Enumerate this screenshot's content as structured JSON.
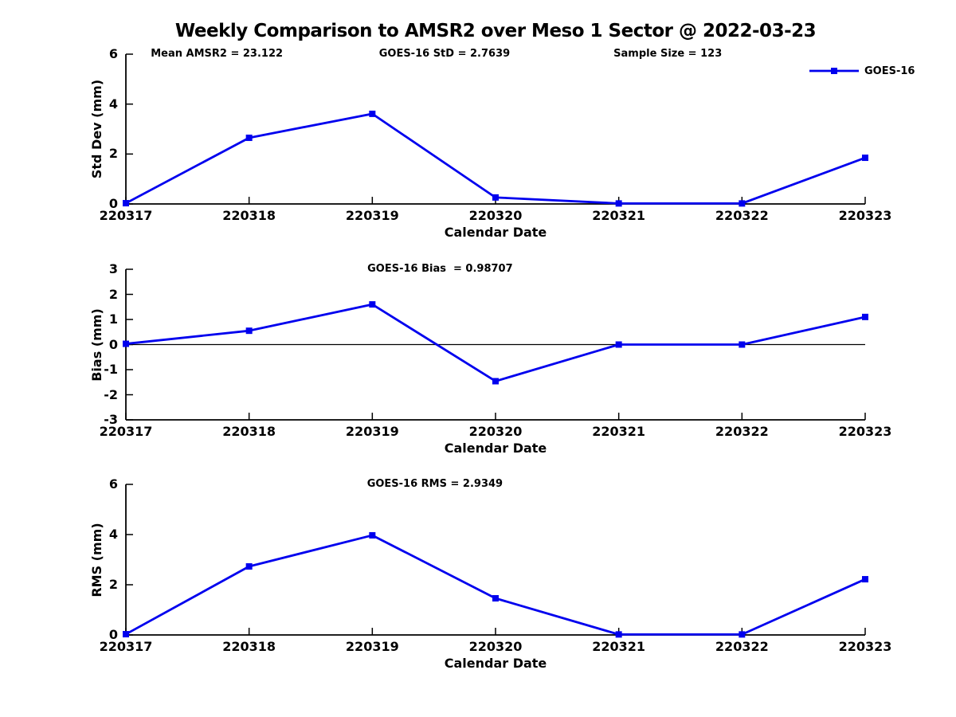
{
  "page": {
    "title": "Weekly Comparison to AMSR2 over Meso 1 Sector @ 2022-03-23"
  },
  "colors": {
    "series": "#0000EE",
    "axis": "#000000",
    "zero_line": "#000000"
  },
  "legend": {
    "label": "GOES-16"
  },
  "chart_data": [
    {
      "type": "line",
      "panel": "std-dev",
      "annotations": [
        "Mean AMSR2 = 23.122",
        "GOES-16 StD = 2.7639",
        "Sample Size = 123"
      ],
      "categories": [
        "220317",
        "220318",
        "220319",
        "220320",
        "220321",
        "220322",
        "220323"
      ],
      "series": [
        {
          "name": "GOES-16",
          "values": [
            0.03,
            2.65,
            3.61,
            0.26,
            0.02,
            0.02,
            1.85
          ]
        }
      ],
      "xlabel": "Calendar Date",
      "ylabel": "Std Dev (mm)",
      "ylim": [
        0,
        6
      ],
      "yticks": [
        0,
        2,
        4,
        6
      ],
      "zero_line": false,
      "grid": false,
      "legend": {
        "label": "GOES-16",
        "position": "top-right"
      }
    },
    {
      "type": "line",
      "panel": "bias",
      "annotations": [
        "GOES-16 Bias  = 0.98707"
      ],
      "categories": [
        "220317",
        "220318",
        "220319",
        "220320",
        "220321",
        "220322",
        "220323"
      ],
      "series": [
        {
          "name": "GOES-16",
          "values": [
            0.03,
            0.55,
            1.6,
            -1.46,
            0.0,
            0.0,
            1.1
          ]
        }
      ],
      "xlabel": "Calendar Date",
      "ylabel": "Bias (mm)",
      "ylim": [
        -3,
        3
      ],
      "yticks": [
        -3,
        -2,
        -1,
        0,
        1,
        2,
        3
      ],
      "zero_line": true,
      "grid": false
    },
    {
      "type": "line",
      "panel": "rms",
      "annotations": [
        "GOES-16 RMS = 2.9349"
      ],
      "categories": [
        "220317",
        "220318",
        "220319",
        "220320",
        "220321",
        "220322",
        "220323"
      ],
      "series": [
        {
          "name": "GOES-16",
          "values": [
            0.03,
            2.73,
            3.97,
            1.46,
            0.02,
            0.02,
            2.22
          ]
        }
      ],
      "xlabel": "Calendar Date",
      "ylabel": "RMS (mm)",
      "ylim": [
        0,
        6
      ],
      "yticks": [
        0,
        2,
        4,
        6
      ],
      "zero_line": false,
      "grid": false
    }
  ]
}
